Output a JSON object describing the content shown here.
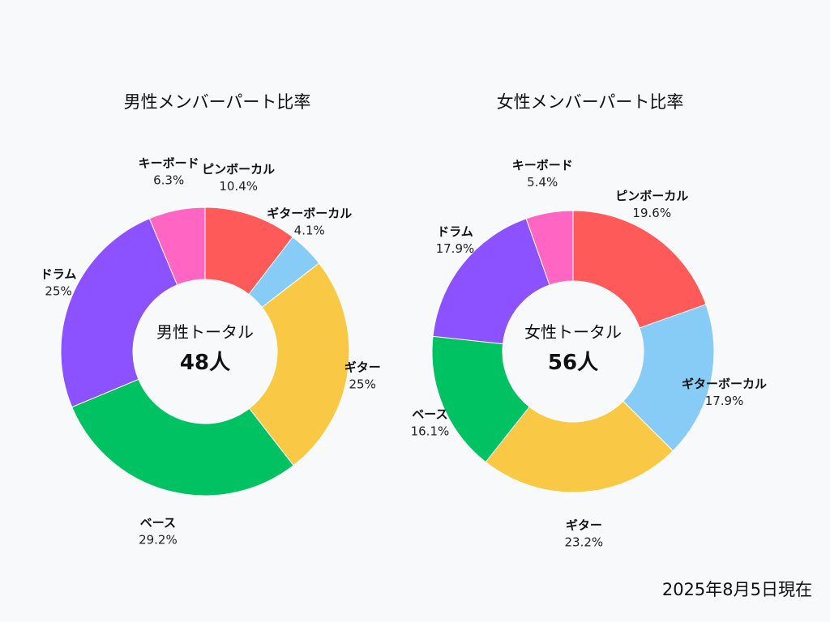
{
  "footer": {
    "date": "2025年8月5日現在"
  },
  "colors": {
    "ピンボーカル": "#ff5a5a",
    "ギターボーカル": "#87cbf7",
    "ギター": "#f9c945",
    "ベース": "#00c262",
    "ドラム": "#8c52ff",
    "キーボード": "#ff66c4"
  },
  "chart_data": [
    {
      "type": "pie",
      "title": "男性メンバーパート比率",
      "center_label": "男性トータル",
      "center_value": "48人",
      "slices": [
        {
          "label": "ピンボーカル",
          "value": 10.4,
          "value_label": "10.4%"
        },
        {
          "label": "ギターボーカル",
          "value": 4.1,
          "value_label": "4.1%"
        },
        {
          "label": "ギター",
          "value": 25,
          "value_label": "25%"
        },
        {
          "label": "ベース",
          "value": 29.2,
          "value_label": "29.2%"
        },
        {
          "label": "ドラム",
          "value": 25,
          "value_label": "25%"
        },
        {
          "label": "キーボード",
          "value": 6.3,
          "value_label": "6.3%"
        }
      ]
    },
    {
      "type": "pie",
      "title": "女性メンバーパート比率",
      "center_label": "女性トータル",
      "center_value": "56人",
      "slices": [
        {
          "label": "ピンボーカル",
          "value": 19.6,
          "value_label": "19.6%"
        },
        {
          "label": "ギターボーカル",
          "value": 17.9,
          "value_label": "17.9%"
        },
        {
          "label": "ギター",
          "value": 23.2,
          "value_label": "23.2%"
        },
        {
          "label": "ベース",
          "value": 16.1,
          "value_label": "16.1%"
        },
        {
          "label": "ドラム",
          "value": 17.9,
          "value_label": "17.9%"
        },
        {
          "label": "キーボード",
          "value": 5.4,
          "value_label": "5.4%"
        }
      ]
    }
  ]
}
